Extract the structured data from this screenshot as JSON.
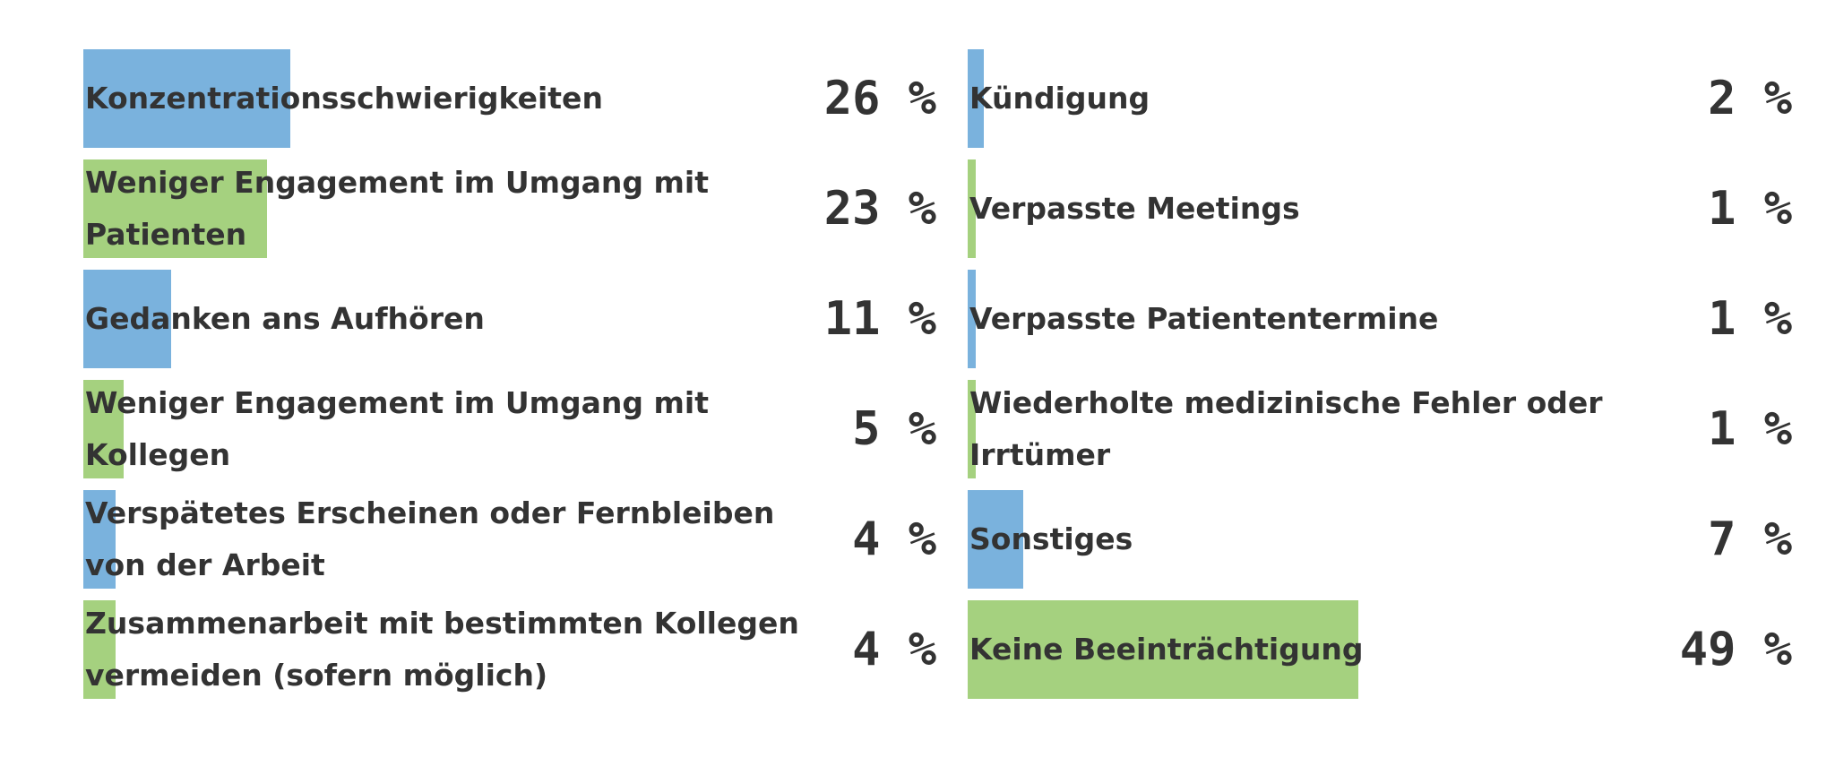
{
  "colors": {
    "blue": "#7ab2dd",
    "green": "#a5d17f",
    "text": "#333333"
  },
  "chart_data": {
    "type": "bar",
    "orientation": "horizontal",
    "unit": "%",
    "xlim": [
      0,
      100
    ],
    "columns": [
      {
        "items": [
          {
            "label": "Konzentrationsschwierigkeiten",
            "value": 26,
            "value_label": "26 %",
            "color": "blue"
          },
          {
            "label": "Weniger Engagement im Umgang mit Patienten",
            "value": 23,
            "value_label": "23 %",
            "color": "green"
          },
          {
            "label": "Gedanken ans Aufhören",
            "value": 11,
            "value_label": "11 %",
            "color": "blue"
          },
          {
            "label": "Weniger Engagement im Umgang mit Kollegen",
            "value": 5,
            "value_label": "5 %",
            "color": "green"
          },
          {
            "label": "Verspätetes Erscheinen oder Fernbleiben von der Arbeit",
            "value": 4,
            "value_label": "4 %",
            "color": "blue"
          },
          {
            "label": "Zusammenarbeit mit bestimmten Kollegen vermeiden (sofern möglich)",
            "value": 4,
            "value_label": "4 %",
            "color": "green"
          }
        ]
      },
      {
        "items": [
          {
            "label": "Kündigung",
            "value": 2,
            "value_label": "2 %",
            "color": "blue"
          },
          {
            "label": "Verpasste Meetings",
            "value": 1,
            "value_label": "1 %",
            "color": "green"
          },
          {
            "label": "Verpasste Patiententermine",
            "value": 1,
            "value_label": "1 %",
            "color": "blue"
          },
          {
            "label": "Wiederholte medizinische Fehler oder Irrtümer",
            "value": 1,
            "value_label": "1 %",
            "color": "green"
          },
          {
            "label": "Sonstiges",
            "value": 7,
            "value_label": "7 %",
            "color": "blue"
          },
          {
            "label": "Keine Beeinträchtigung",
            "value": 49,
            "value_label": "49 %",
            "color": "green"
          }
        ]
      }
    ]
  }
}
